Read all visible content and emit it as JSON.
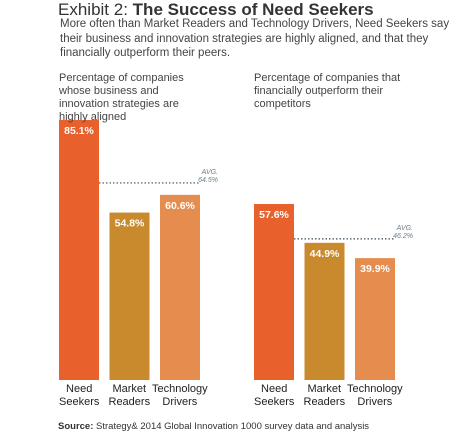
{
  "header": {
    "title_prefix": "Exhibit 2:",
    "title": "The Success of Need Seekers",
    "subtitle": "More often than Market Readers and Technology Drivers, Need Seekers say their business and innovation strategies are highly aligned, and that they financially outperform their peers."
  },
  "chart_data": [
    {
      "type": "bar",
      "title": "Percentage of companies whose business and innovation strategies are highly aligned",
      "categories": [
        "Need Seekers",
        "Market Readers",
        "Technology Drivers"
      ],
      "values": [
        85.1,
        54.8,
        60.6
      ],
      "value_labels": [
        "85.1%",
        "54.8%",
        "60.6%"
      ],
      "colors": [
        "#e8602c",
        "#c98a2e",
        "#e58c4f"
      ],
      "ylim": [
        0,
        100
      ],
      "average": {
        "label": "AVG.",
        "value": 64.5,
        "value_label": "64.5%"
      }
    },
    {
      "type": "bar",
      "title": "Percentage of companies that financially outperform their competitors",
      "categories": [
        "Need Seekers",
        "Market Readers",
        "Technology Drivers"
      ],
      "values": [
        57.6,
        44.9,
        39.9
      ],
      "value_labels": [
        "57.6%",
        "44.9%",
        "39.9%"
      ],
      "colors": [
        "#e8602c",
        "#c98a2e",
        "#e58c4f"
      ],
      "ylim": [
        0,
        100
      ],
      "average": {
        "label": "AVG.",
        "value": 46.2,
        "value_label": "46.2%"
      }
    }
  ],
  "source": {
    "label": "Source:",
    "text": "Strategy& 2014 Global Innovation 1000 survey data and analysis"
  }
}
